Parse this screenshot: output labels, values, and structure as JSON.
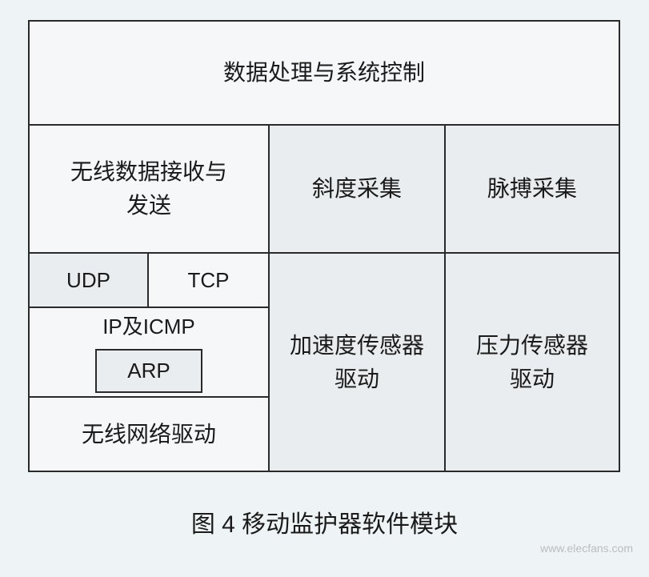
{
  "diagram": {
    "top": "数据处理与系统控制",
    "middle": {
      "left": "无线数据接收与\n发送",
      "center": "斜度采集",
      "right": "脉搏采集"
    },
    "bottom": {
      "left": {
        "udp": "UDP",
        "tcp": "TCP",
        "ip_icmp": "IP及ICMP",
        "arp": "ARP",
        "driver": "无线网络驱动"
      },
      "center": "加速度传感器\n驱动",
      "right": "压力传感器\n驱动"
    }
  },
  "caption": "图 4  移动监护器软件模块",
  "watermark": "www.elecfans.com",
  "colors": {
    "border": "#2a2a2a",
    "bg_light": "#f5f7f8",
    "bg_shade": "#e9edef",
    "page_bg": "#eef3f6",
    "text": "#1a1a1a"
  },
  "fontsize": {
    "large": 28,
    "medium": 26,
    "caption": 30
  }
}
